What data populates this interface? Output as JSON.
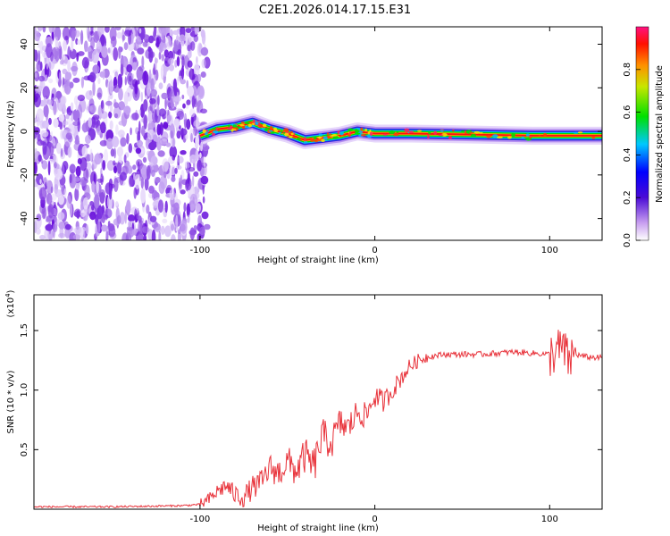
{
  "title": "C2E1.2026.014.17.15.E31",
  "colors": {
    "snr_line": "#e8323a",
    "noise": "#8a2be2"
  },
  "chart_data": [
    {
      "type": "heatmap",
      "xlabel": "Height of straight line (km)",
      "ylabel": "Frequency (Hz)",
      "xlim": [
        -195,
        130
      ],
      "ylim": [
        -50,
        48
      ],
      "x_ticks": [
        -100,
        0,
        100
      ],
      "y_ticks": [
        -40,
        -20,
        0,
        20,
        40
      ],
      "colorbar": {
        "label": "Normalized spectral amplitude",
        "range": [
          0,
          1
        ],
        "ticks": [
          0.0,
          0.2,
          0.4,
          0.6,
          0.8
        ]
      },
      "noise_region_x": [
        -195,
        -100
      ],
      "signal_track": [
        {
          "x": -100,
          "y": -2
        },
        {
          "x": -90,
          "y": 1
        },
        {
          "x": -80,
          "y": 2
        },
        {
          "x": -70,
          "y": 4
        },
        {
          "x": -60,
          "y": 1
        },
        {
          "x": -50,
          "y": -1
        },
        {
          "x": -40,
          "y": -4
        },
        {
          "x": -30,
          "y": -3
        },
        {
          "x": -20,
          "y": -2
        },
        {
          "x": -10,
          "y": 0
        },
        {
          "x": 0,
          "y": -1
        },
        {
          "x": 20,
          "y": -1
        },
        {
          "x": 60,
          "y": -1.5
        },
        {
          "x": 90,
          "y": -2
        },
        {
          "x": 130,
          "y": -2
        }
      ]
    },
    {
      "type": "line",
      "xlabel": "Height of straight line (km)",
      "ylabel": "SNR (10 * v/v)",
      "scale_label": "(x10",
      "scale_exponent": "4",
      "scale_suffix": ")",
      "xlim": [
        -195,
        130
      ],
      "ylim": [
        0,
        1.8
      ],
      "x_ticks": [
        -100,
        0,
        100
      ],
      "y_ticks": [
        0.5,
        1.0,
        1.5
      ],
      "series": [
        {
          "name": "SNR",
          "x": [
            -195,
            -150,
            -110,
            -100,
            -95,
            -90,
            -85,
            -80,
            -75,
            -70,
            -65,
            -60,
            -55,
            -50,
            -45,
            -40,
            -35,
            -30,
            -25,
            -20,
            -15,
            -10,
            -5,
            0,
            5,
            10,
            15,
            20,
            25,
            30,
            40,
            60,
            80,
            100,
            105,
            108,
            110,
            115,
            120,
            130
          ],
          "y": [
            0.02,
            0.02,
            0.03,
            0.04,
            0.08,
            0.15,
            0.2,
            0.12,
            0.1,
            0.18,
            0.22,
            0.35,
            0.3,
            0.4,
            0.32,
            0.45,
            0.35,
            0.62,
            0.55,
            0.72,
            0.68,
            0.82,
            0.78,
            0.95,
            0.9,
            1.0,
            1.1,
            1.2,
            1.25,
            1.28,
            1.3,
            1.3,
            1.32,
            1.3,
            1.33,
            1.35,
            1.25,
            1.3,
            1.28,
            1.27
          ]
        }
      ]
    }
  ]
}
